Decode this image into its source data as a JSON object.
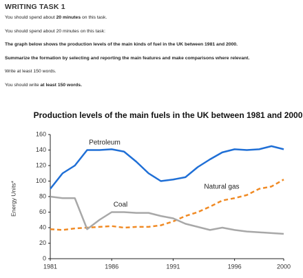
{
  "task": {
    "title": "WRITING TASK 1",
    "lines": [
      [
        {
          "text": "You should spend about "
        },
        {
          "text": "20 minutes",
          "bold": true
        },
        {
          "text": " on this task."
        }
      ],
      [
        {
          "text": "You should spend about 20 minutes on this task:"
        }
      ],
      [
        {
          "text": "The graph below shows the production levels of the main kinds of fuel in the UK between 1981 and 2000.",
          "bold": true
        }
      ],
      [
        {
          "text": "Summarize the formation by selecting and reporting the main features and make comparisons where relevant.",
          "bold": true
        }
      ],
      [
        {
          "text": "Write at least 150 words."
        }
      ],
      [
        {
          "text": "You should write "
        },
        {
          "text": "at least 150 words.",
          "bold": true
        }
      ]
    ]
  },
  "chart_data": {
    "type": "line",
    "title": "Production levels of the main fuels in the UK between 1981 and 2000",
    "y_label": "Energy Units*",
    "x": [
      1981,
      1982,
      1983,
      1984,
      1985,
      1986,
      1987,
      1988,
      1989,
      1990,
      1991,
      1992,
      1993,
      1994,
      1995,
      1996,
      1997,
      1998,
      1999,
      2000
    ],
    "series": [
      {
        "name": "Petroleum",
        "color": "#1f6fd6",
        "values": [
          90,
          110,
          120,
          140,
          140,
          141,
          138,
          125,
          110,
          100,
          102,
          105,
          118,
          128,
          137,
          141,
          140,
          141,
          145,
          141
        ]
      },
      {
        "name": "Natural gas",
        "color": "#f08a24",
        "dashed": true,
        "values": [
          38,
          37,
          39,
          40,
          41,
          42,
          40,
          41,
          41,
          43,
          48,
          55,
          60,
          67,
          75,
          78,
          82,
          90,
          93,
          102
        ]
      },
      {
        "name": "Coal",
        "color": "#a8a8a8",
        "values": [
          80,
          78,
          78,
          38,
          50,
          60,
          60,
          59,
          59,
          55,
          52,
          45,
          41,
          37,
          40,
          37,
          35,
          34,
          33,
          32
        ]
      }
    ],
    "xlim": [
      1981,
      2000
    ],
    "xticks": [
      1981,
      1986,
      1991,
      1996,
      2000
    ],
    "ylim": [
      0,
      160
    ],
    "yticks": [
      0,
      20,
      40,
      60,
      80,
      100,
      120,
      140,
      160
    ]
  }
}
